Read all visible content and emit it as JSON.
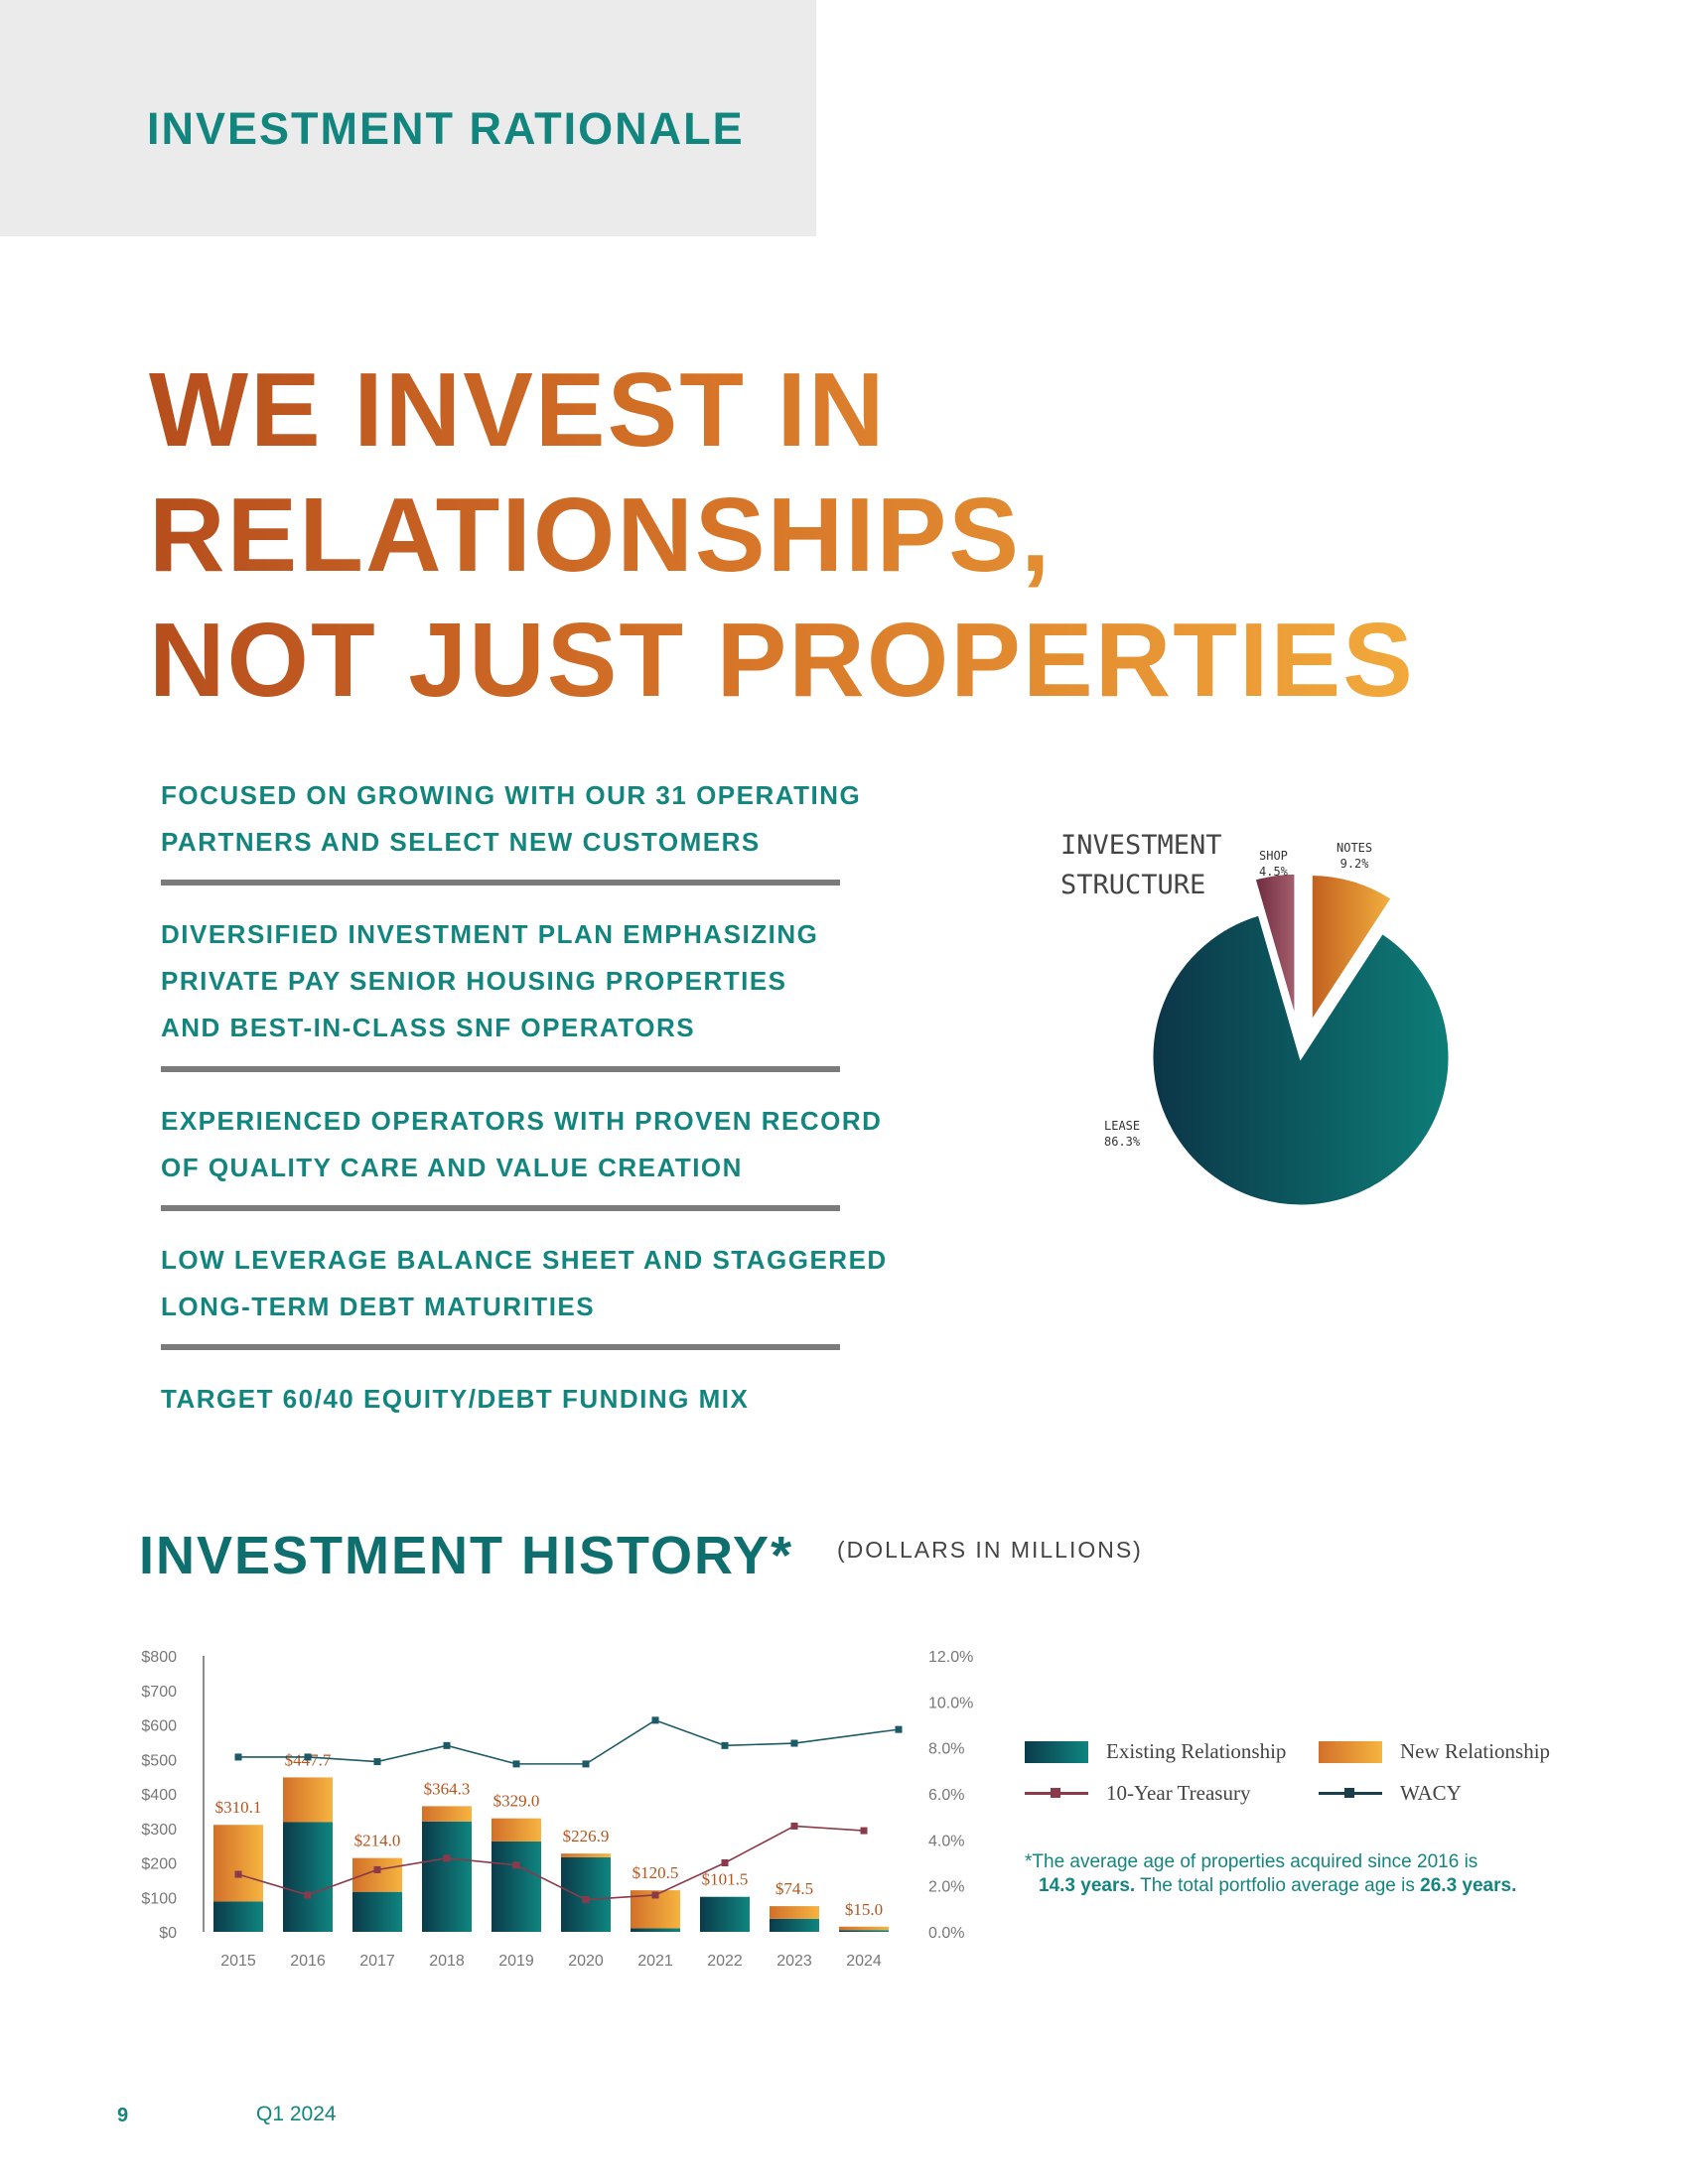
{
  "header": {
    "section_label": "INVESTMENT RATIONALE"
  },
  "headline": {
    "lines": [
      "WE INVEST IN",
      "RELATIONSHIPS,",
      "NOT JUST PROPERTIES"
    ]
  },
  "bullets": [
    {
      "lines": [
        "FOCUSED ON GROWING WITH OUR 31 OPERATING",
        "PARTNERS AND SELECT NEW CUSTOMERS"
      ]
    },
    {
      "lines": [
        "DIVERSIFIED INVESTMENT PLAN EMPHASIZING",
        "PRIVATE PAY SENIOR HOUSING PROPERTIES",
        "AND BEST-IN-CLASS SNF OPERATORS"
      ]
    },
    {
      "lines": [
        "EXPERIENCED OPERATORS WITH PROVEN RECORD",
        "OF QUALITY CARE AND VALUE CREATION"
      ]
    },
    {
      "lines": [
        "LOW LEVERAGE BALANCE SHEET AND STAGGERED",
        "LONG-TERM DEBT MATURITIES"
      ]
    },
    {
      "lines": [
        "TARGET 60/40 EQUITY/DEBT FUNDING MIX"
      ]
    }
  ],
  "investment_structure": {
    "title_lines": [
      "INVESTMENT",
      "STRUCTURE"
    ],
    "slices": [
      {
        "name": "LEASE",
        "pct_label": "86.3%",
        "value": 86.3,
        "color": "#0b6f6d"
      },
      {
        "name": "SHOP",
        "pct_label": "4.5%",
        "value": 4.5,
        "color": "#7e3346"
      },
      {
        "name": "NOTES",
        "pct_label": "9.2%",
        "value": 9.2,
        "color": "#e08a2b"
      }
    ]
  },
  "history": {
    "title": "INVESTMENT HISTORY*",
    "subtitle": "(DOLLARS IN MILLIONS)",
    "footnote": {
      "line1": "*The average age of properties acquired since 2016 is",
      "line2_bold1": "14.3 years.",
      "line2_text": " The total portfolio average age is ",
      "line2_bold2": "26.3 years."
    }
  },
  "legend": {
    "existing": "Existing Relationship",
    "new": "New Relationship",
    "treasury": "10-Year Treasury",
    "wacy": "WACY"
  },
  "chart_data": {
    "type": "bar",
    "x": [
      "2015",
      "2016",
      "2017",
      "2018",
      "2019",
      "2020",
      "2021",
      "2022",
      "2023",
      "2024"
    ],
    "left_axis_ticks": [
      "$0",
      "$100",
      "$200",
      "$300",
      "$400",
      "$500",
      "$600",
      "$700",
      "$800"
    ],
    "right_axis_ticks": [
      "0.0%",
      "2.0%",
      "4.0%",
      "6.0%",
      "8.0%",
      "10.0%",
      "12.0%"
    ],
    "ylim": [
      0,
      800
    ],
    "y2lim": [
      0,
      12
    ],
    "total_labels": [
      "$310.1",
      "$447.7",
      "$214.0",
      "$364.3",
      "$329.0",
      "$226.9",
      "$120.5",
      "$101.5",
      "$74.5",
      "$15.0"
    ],
    "series": [
      {
        "name": "Existing Relationship",
        "type": "bar",
        "stack": true,
        "color": "#0f7676",
        "values": [
          88,
          318,
          116,
          320,
          262,
          216,
          10,
          101.5,
          38,
          5
        ]
      },
      {
        "name": "New Relationship",
        "type": "bar",
        "stack": true,
        "color": "#eb9a35",
        "values": [
          222.1,
          129.7,
          98,
          44.3,
          67,
          10.9,
          110.5,
          0,
          36.5,
          10
        ]
      },
      {
        "name": "10-Year Treasury",
        "type": "line",
        "axis": "right",
        "color": "#8a3a4a",
        "values": [
          2.5,
          1.6,
          2.7,
          3.2,
          2.9,
          1.4,
          1.6,
          3.0,
          4.6,
          4.4
        ]
      },
      {
        "name": "WACY",
        "type": "line",
        "axis": "right",
        "color": "#1b5a66",
        "values": [
          7.6,
          7.6,
          7.4,
          8.1,
          7.3,
          7.3,
          9.2,
          8.1,
          8.2,
          8.8
        ]
      }
    ]
  },
  "footer": {
    "page_number": "9",
    "period": "Q1 2024"
  }
}
